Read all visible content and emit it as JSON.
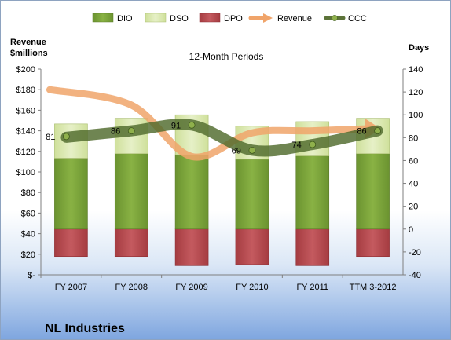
{
  "chart_data": {
    "type": "bar",
    "title": "12-Month Periods",
    "company": "NL Industries",
    "ylabel_left": "Revenue\n$millions",
    "ylabel_right": "Days",
    "categories": [
      "FY 2007",
      "FY 2008",
      "FY 2009",
      "FY 2010",
      "FY 2011",
      "TTM 3-2012"
    ],
    "left_axis": {
      "min": 0,
      "max": 200,
      "step": 20,
      "tick_labels": [
        "$-",
        "$20",
        "$40",
        "$60",
        "$80",
        "$100",
        "$120",
        "$140",
        "$160",
        "$180",
        "$200"
      ]
    },
    "right_axis": {
      "min": -40,
      "max": 140,
      "step": 20
    },
    "series": [
      {
        "name": "DIO",
        "axis": "right",
        "kind": "stacked-bar",
        "color": "#77a033",
        "values": [
          62,
          66,
          65,
          61,
          64,
          66
        ]
      },
      {
        "name": "DSO",
        "axis": "right",
        "kind": "stacked-bar",
        "color": "#d8e8ae",
        "values": [
          30,
          31,
          35,
          29,
          30,
          31
        ]
      },
      {
        "name": "DPO",
        "axis": "right",
        "kind": "negative-bar",
        "color": "#b5474c",
        "values": [
          -24,
          -24,
          -32,
          -31,
          -32,
          -24
        ]
      },
      {
        "name": "Revenue",
        "axis": "left",
        "kind": "arrow-line",
        "color": "#f0a46a",
        "values": [
          180,
          165,
          115,
          138,
          140,
          142
        ]
      },
      {
        "name": "CCC",
        "axis": "right",
        "kind": "line",
        "color": "#5c7339",
        "values": [
          81,
          86,
          91,
          69,
          74,
          86
        ]
      }
    ],
    "legend_position": "top",
    "grid": false
  }
}
